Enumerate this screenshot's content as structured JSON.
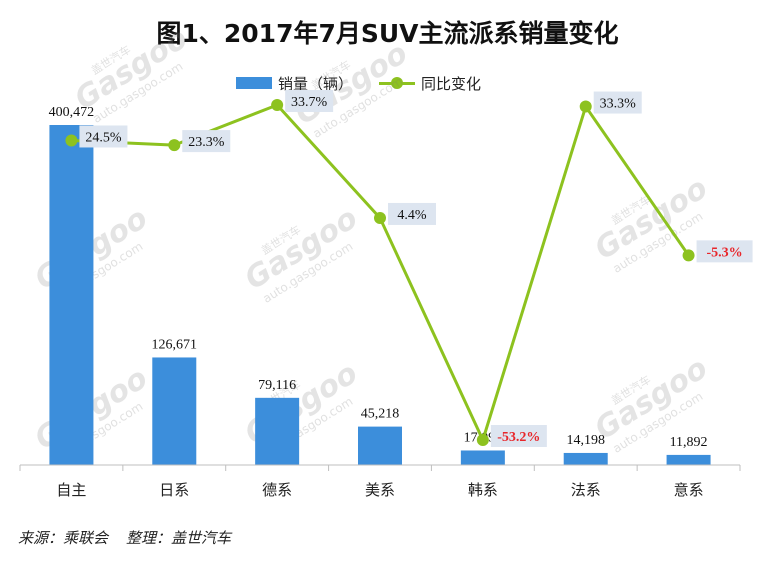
{
  "title": "图1、2017年7月SUV主流派系销量变化",
  "legend": {
    "bar_label": "销量（辆）",
    "line_label": "同比变化"
  },
  "source": {
    "from": "来源：乘联会",
    "by": "整理：盖世汽车"
  },
  "watermark": {
    "cn": "盖世汽车",
    "brand": "Gasgoo",
    "url": "auto.gasgoo.com"
  },
  "colors": {
    "bar": "#3c8edb",
    "line": "#8dc21f",
    "negative_label": "#e8262b",
    "label_bg": "#dde5f0"
  },
  "chart_data": {
    "type": "bar",
    "categories": [
      "自主",
      "日系",
      "德系",
      "美系",
      "韩系",
      "法系",
      "意系"
    ],
    "series": [
      {
        "name": "销量（辆）",
        "type": "bar",
        "values": [
          400472,
          126671,
          79116,
          45218,
          17098,
          14198,
          11892
        ],
        "labels": [
          "400,472",
          "126,671",
          "79,116",
          "45,218",
          "17,098",
          "14,198",
          "11,892"
        ]
      },
      {
        "name": "同比变化",
        "type": "line",
        "values": [
          24.5,
          23.3,
          33.7,
          4.4,
          -53.2,
          33.3,
          -5.3
        ],
        "labels": [
          "24.5%",
          "23.3%",
          "33.7%",
          "4.4%",
          "-53.2%",
          "33.3%",
          "-5.3%"
        ]
      }
    ]
  }
}
